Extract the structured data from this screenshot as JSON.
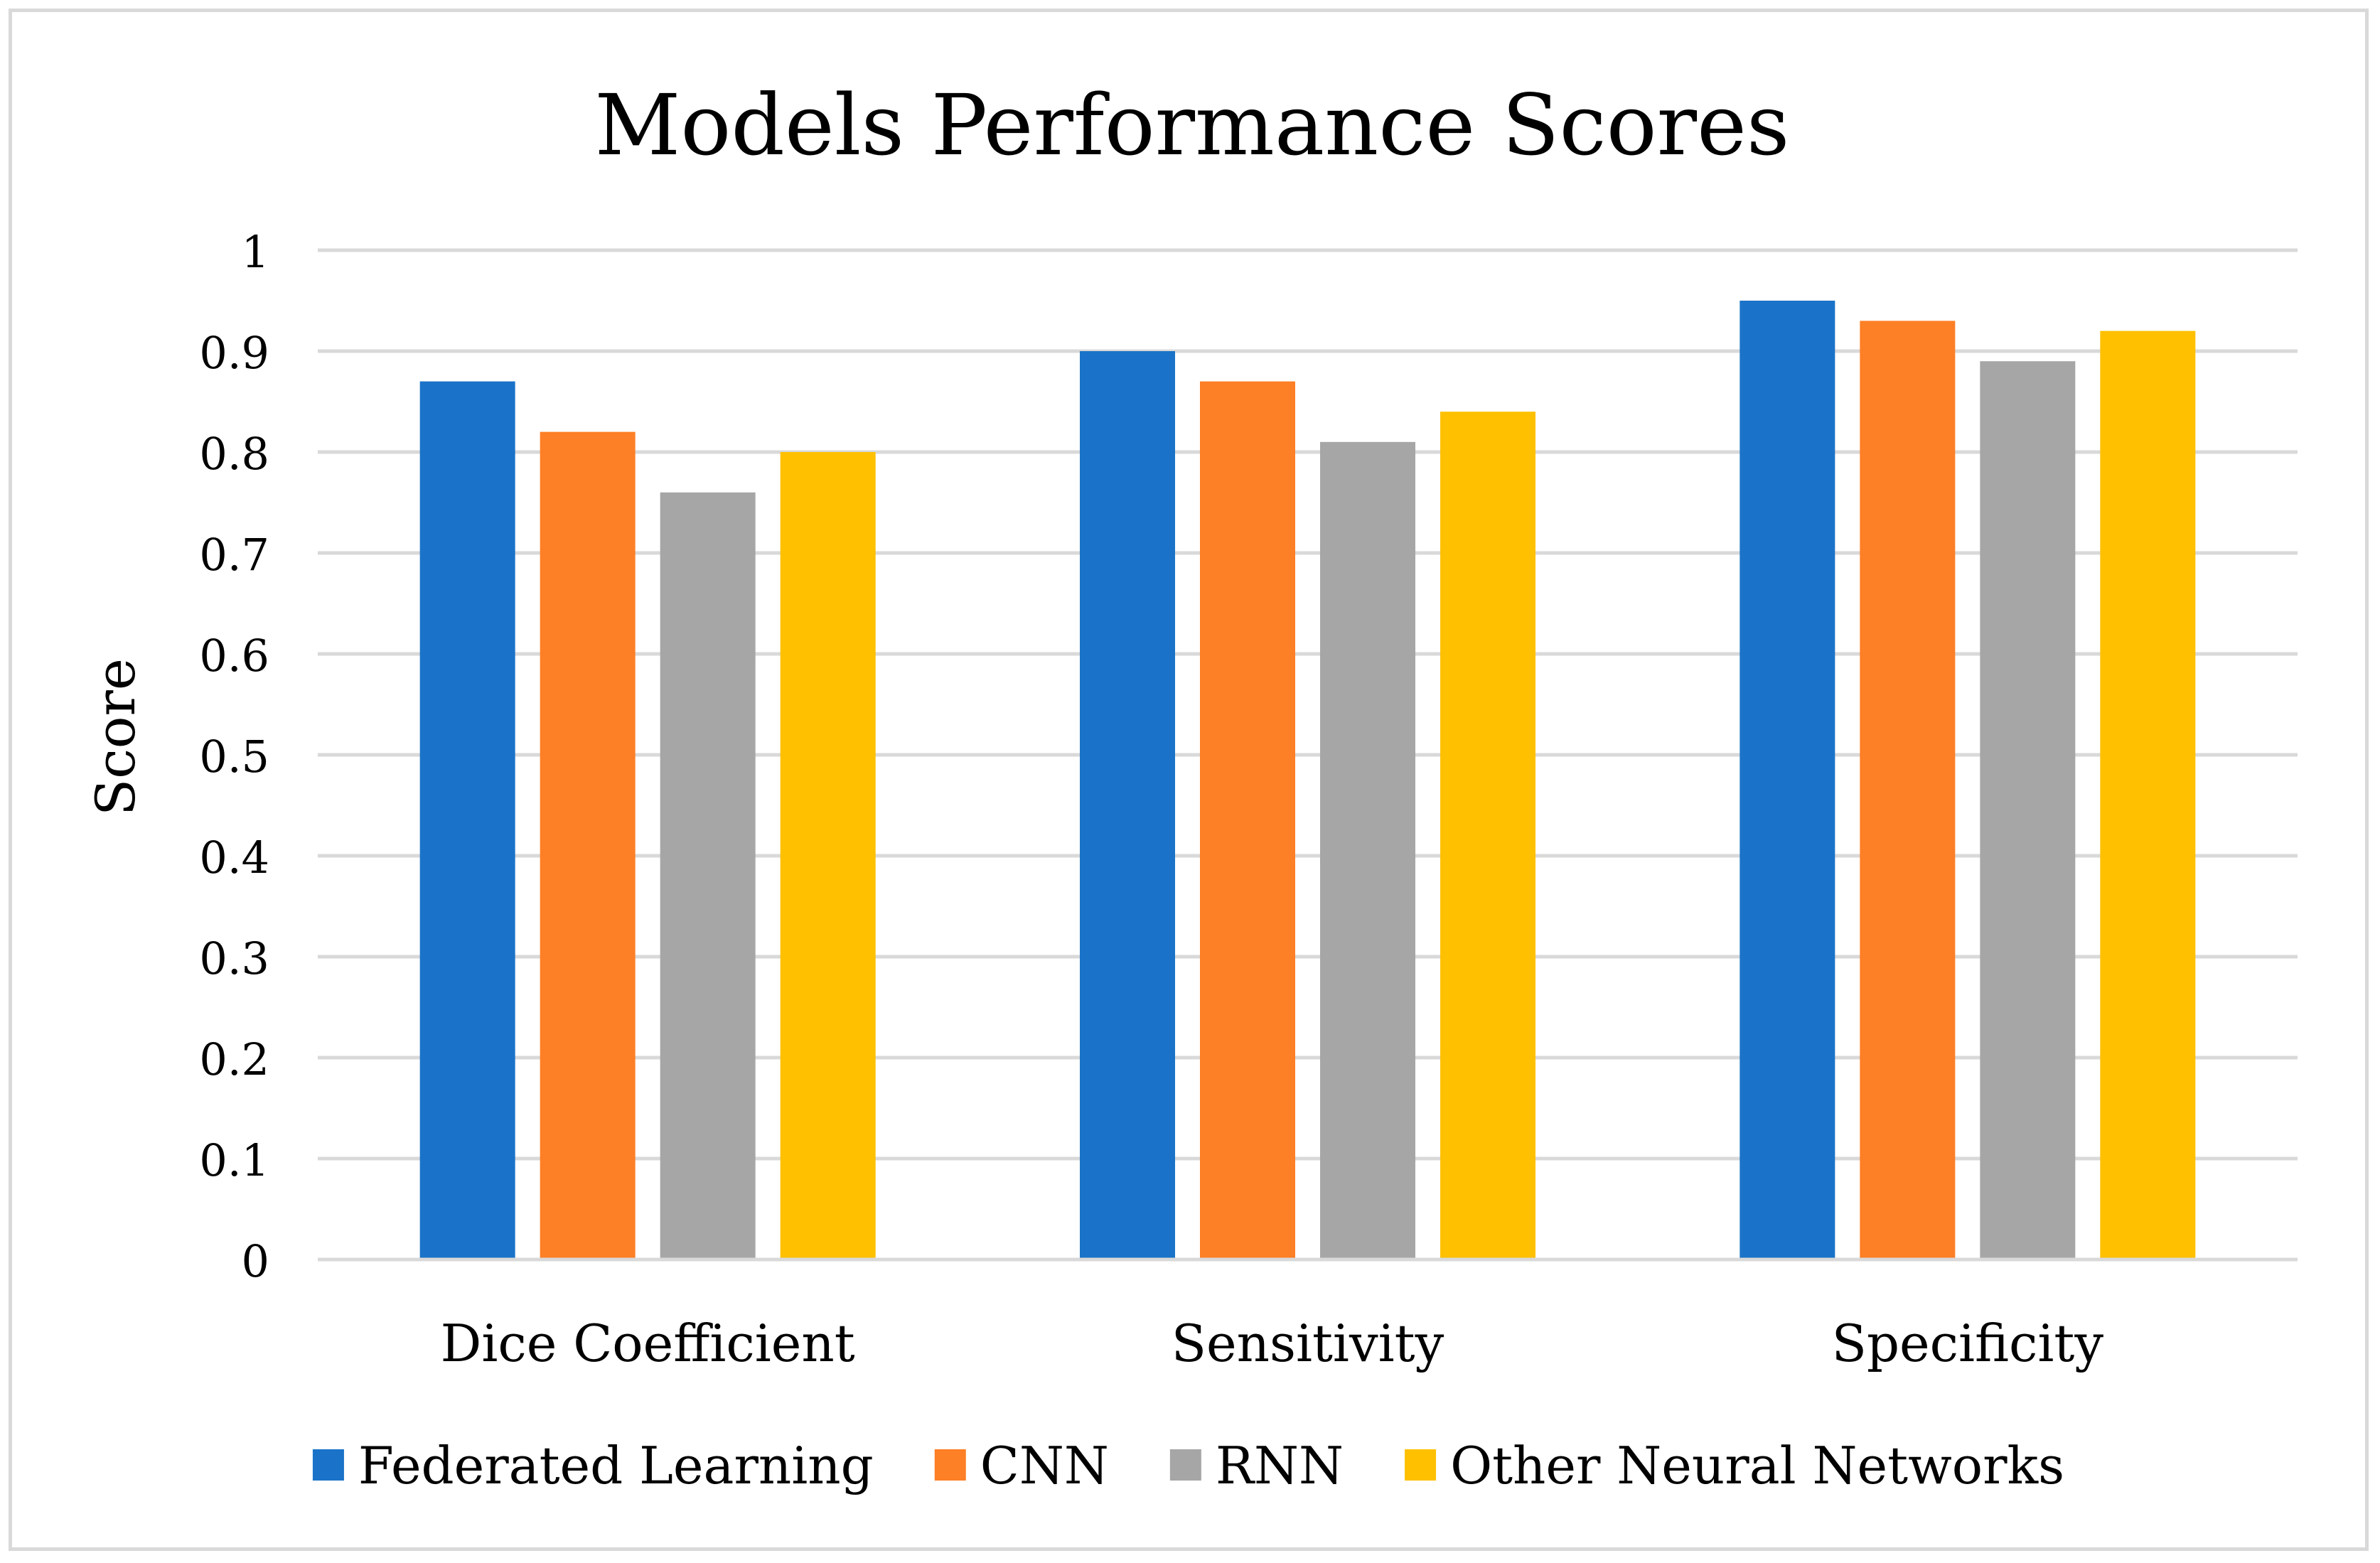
{
  "chart_data": {
    "type": "bar",
    "title": "Models Performance Scores",
    "xlabel": "",
    "ylabel": "Score",
    "ylim": [
      0,
      1
    ],
    "yticks": [
      "0",
      "0.1",
      "0.2",
      "0.3",
      "0.4",
      "0.5",
      "0.6",
      "0.7",
      "0.8",
      "0.9",
      "1"
    ],
    "grid": true,
    "legend_position": "bottom",
    "categories": [
      "Dice Coefficient",
      "Sensitivity",
      "Specificity"
    ],
    "series": [
      {
        "name": "Federated Learning",
        "color": "#1a73c8",
        "values": [
          0.87,
          0.9,
          0.95
        ]
      },
      {
        "name": "CNN",
        "color": "#fd7f26",
        "values": [
          0.82,
          0.87,
          0.93
        ]
      },
      {
        "name": "RNN",
        "color": "#a6a6a6",
        "values": [
          0.76,
          0.81,
          0.89
        ]
      },
      {
        "name": "Other Neural Networks",
        "color": "#ffc000",
        "values": [
          0.8,
          0.84,
          0.92
        ]
      }
    ]
  }
}
